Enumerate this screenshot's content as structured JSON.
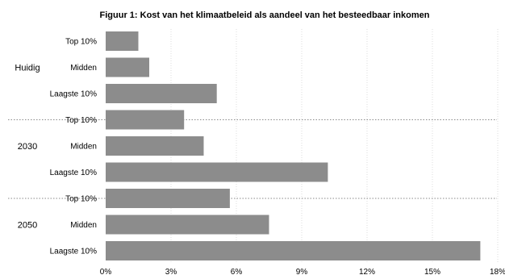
{
  "chart_data": {
    "type": "bar",
    "orientation": "horizontal",
    "title": "Figuur 1: Kost van het klimaatbeleid als aandeel van het besteedbaar inkomen",
    "xlabel": "",
    "ylabel": "",
    "xlim": [
      0,
      18
    ],
    "x_tick_labels": [
      "0%",
      "3%",
      "6%",
      "9%",
      "12%",
      "15%",
      "18%"
    ],
    "grid": "vertical dotted",
    "legend": "none",
    "bar_color": "#8c8c8c",
    "groups": [
      {
        "name": "Huidig",
        "categories": [
          "Top 10%",
          "Midden",
          "Laagste 10%"
        ],
        "values": [
          1.5,
          2.0,
          5.1
        ]
      },
      {
        "name": "2030",
        "categories": [
          "Top 10%",
          "Midden",
          "Laagste 10%"
        ],
        "values": [
          3.6,
          4.5,
          10.2
        ]
      },
      {
        "name": "2050",
        "categories": [
          "Top 10%",
          "Midden",
          "Laagste 10%"
        ],
        "values": [
          5.7,
          7.5,
          17.2
        ]
      }
    ]
  }
}
